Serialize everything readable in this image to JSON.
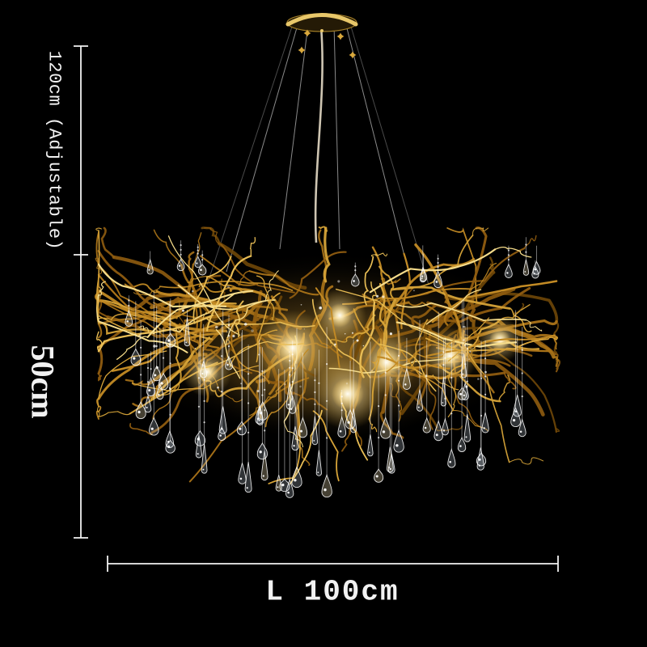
{
  "page": {
    "background": "#000000"
  },
  "annotations": {
    "line_color": "#f2f2f2",
    "height_adjustable_label": "120cm (Adjustable)",
    "fixture_height_label": "50cm",
    "length_label": "L 100cm"
  },
  "chandelier": {
    "gold_palette": [
      "#6f4708",
      "#8f5c10",
      "#aa7318",
      "#c28a24",
      "#d6a338",
      "#e8bd55",
      "#f6dc8a"
    ],
    "canopy_face": "#241a06",
    "canopy_rim": "#e8c76a",
    "canopy_edge": "#a07c26",
    "cable_color": "#b9b9b9",
    "cord_color": "#d9d0bc",
    "connector_color": "#d9a83c",
    "glow_soft": "#e8b44c",
    "glow_core": "#fffdf4",
    "glow_warm": "#ffe9ac",
    "crystal_fill": "rgba(225,235,250,0.22)",
    "crystal_warm_fill": "rgba(250,232,185,0.28)",
    "crystal_stroke": "rgba(255,255,255,0.88)",
    "crystal_stem": "rgba(255,255,255,0.5)",
    "sparkle_color": "#ffffff"
  }
}
